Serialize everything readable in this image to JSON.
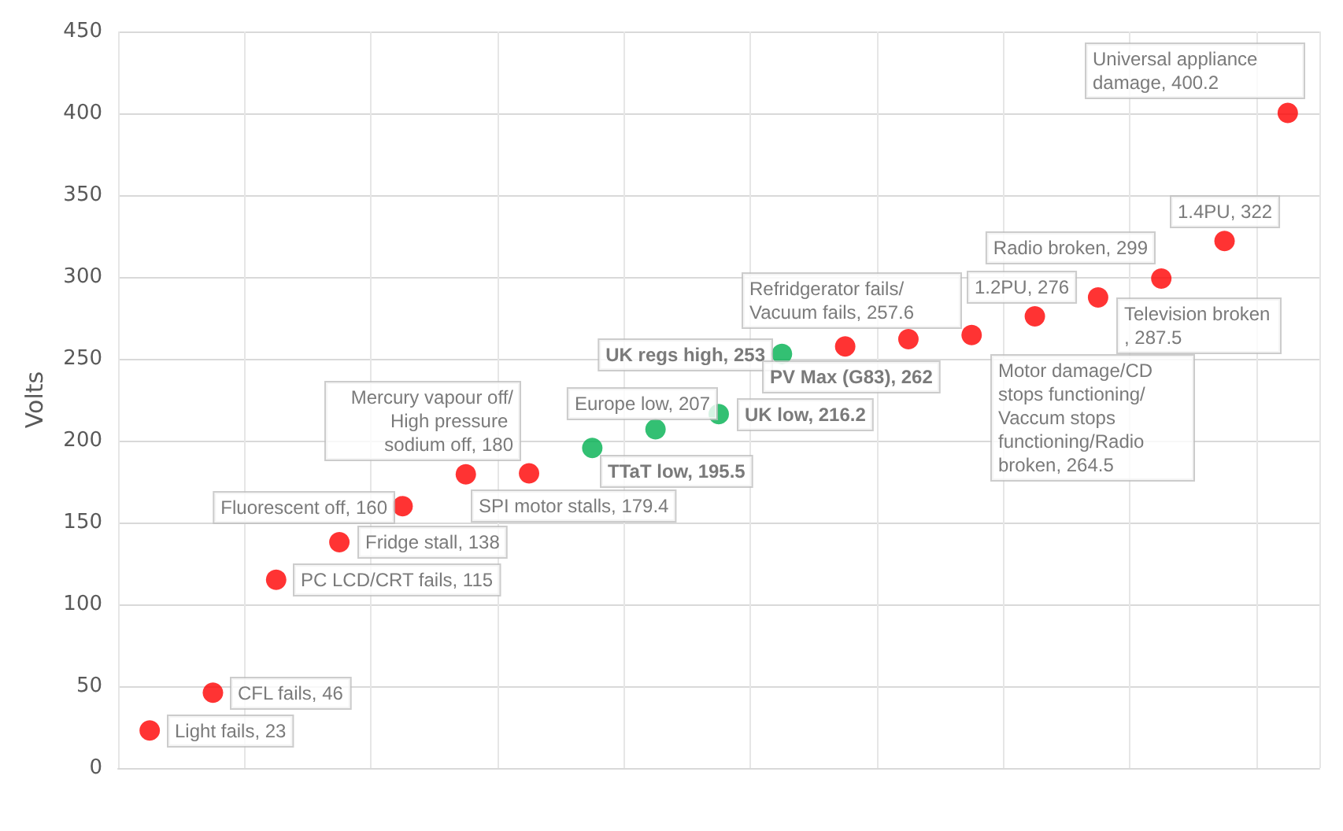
{
  "chart_data": {
    "type": "scatter",
    "ylabel": "Volts",
    "categories": [
      null,
      null,
      null,
      null,
      null,
      null,
      null,
      null,
      null,
      null,
      null,
      null,
      null,
      null,
      null,
      null,
      null,
      null,
      null
    ],
    "values": [
      23,
      46,
      115,
      138,
      160,
      179.4,
      180,
      195.5,
      207,
      216.2,
      253,
      257.6,
      262,
      264.5,
      276,
      287.5,
      299,
      322,
      400.2
    ],
    "colors": [
      "#ff0000",
      "#ff0000",
      "#ff0000",
      "#ff0000",
      "#ff0000",
      "#ff0000",
      "#ff0000",
      "#00b050",
      "#00b050",
      "#00b050",
      "#00b050",
      "#ff0000",
      "#ff0000",
      "#ff0000",
      "#ff0000",
      "#ff0000",
      "#ff0000",
      "#ff0000",
      "#ff0000"
    ],
    "value_labels": [
      "Light fails, 23",
      "CFL fails, 46",
      "PC LCD/CRT fails, 115",
      "Fridge stall, 138",
      "Fluorescent off, 160",
      "SPI motor stalls, 179.4",
      "Mercury vapour off/High pressure sodium off, 180",
      "TTaT low, 195.5",
      "Europe low, 207",
      "UK low, 216.2",
      "UK regs high, 253",
      "Refridgerator fails/ Vacuum fails, 257.6",
      "PV Max (G83), 262",
      "Motor damage/CD stops functioning/Vaccum stops functioning/Radio broken, 264.5",
      "1.2PU, 276",
      "Television broken, 287.5",
      "Radio broken, 299",
      "1.4PU, 322",
      "Universal appliance damage, 400.2"
    ],
    "ylim": [
      0,
      450
    ],
    "yticks": [
      0,
      50,
      100,
      150,
      200,
      250,
      300,
      350,
      400,
      450
    ],
    "grid": true,
    "marker": "circle"
  }
}
